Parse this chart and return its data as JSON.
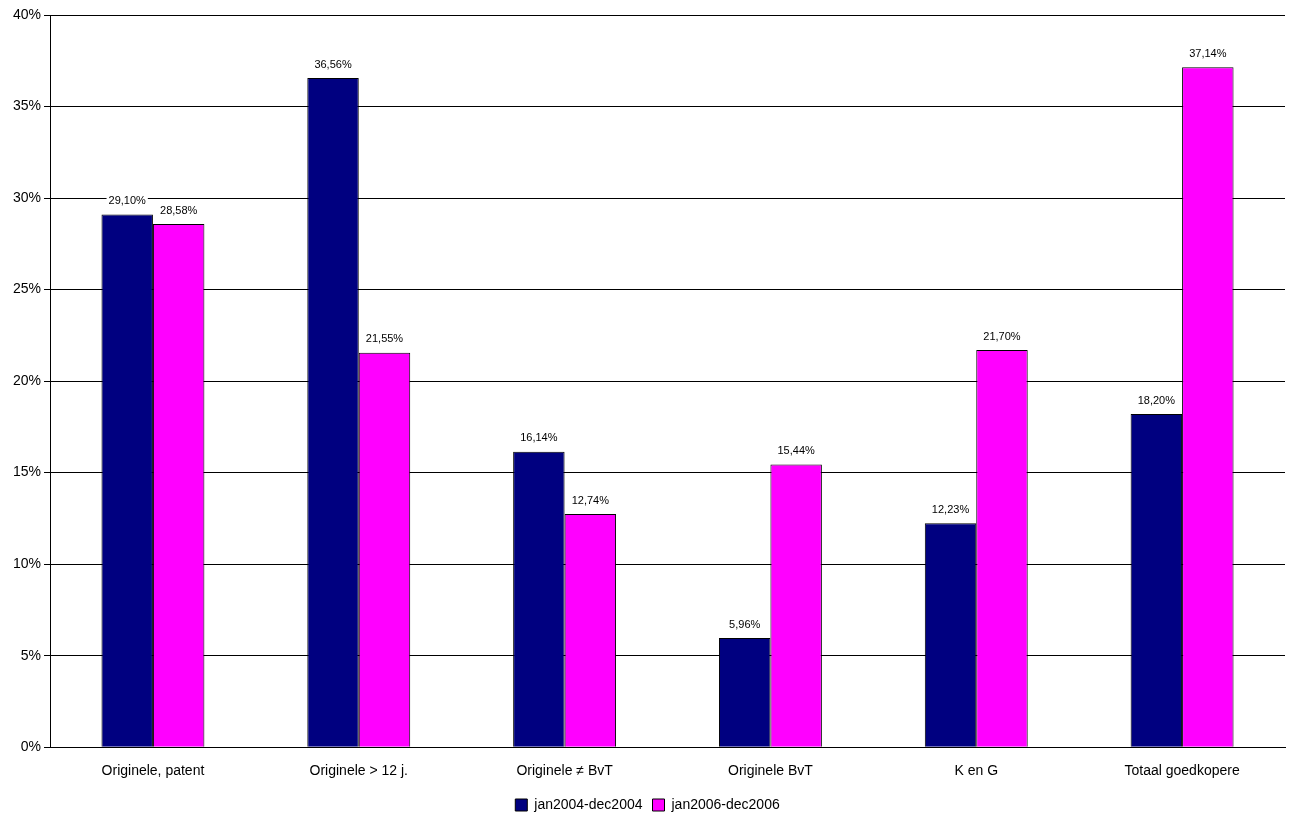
{
  "chart_data": {
    "type": "bar",
    "categories": [
      "Originele, patent",
      "Originele > 12 j.",
      "Originele ≠ BvT",
      "Originele BvT",
      "K en G",
      "Totaal goedkopere"
    ],
    "series": [
      {
        "name": "jan2004-dec2004",
        "color": "#000080",
        "values": [
          29.1,
          36.56,
          16.14,
          5.96,
          12.23,
          18.2
        ],
        "value_labels": [
          "29,10%",
          "36,56%",
          "16,14%",
          "5,96%",
          "12,23%",
          "18,20%"
        ]
      },
      {
        "name": "jan2006-dec2006",
        "color": "#ff00ff",
        "values": [
          28.58,
          21.55,
          12.74,
          15.44,
          21.7,
          37.14
        ],
        "value_labels": [
          "28,58%",
          "21,55%",
          "12,74%",
          "15,44%",
          "21,70%",
          "37,14%"
        ]
      }
    ],
    "ylim": [
      0,
      40
    ],
    "yticks": [
      {
        "value": 0,
        "label": "0%"
      },
      {
        "value": 5,
        "label": "5%"
      },
      {
        "value": 10,
        "label": "10%"
      },
      {
        "value": 15,
        "label": "15%"
      },
      {
        "value": 20,
        "label": "20%"
      },
      {
        "value": 25,
        "label": "25%"
      },
      {
        "value": 30,
        "label": "30%"
      },
      {
        "value": 35,
        "label": "35%"
      },
      {
        "value": 40,
        "label": "40%"
      }
    ],
    "grid": "y",
    "legend": "bottom"
  }
}
